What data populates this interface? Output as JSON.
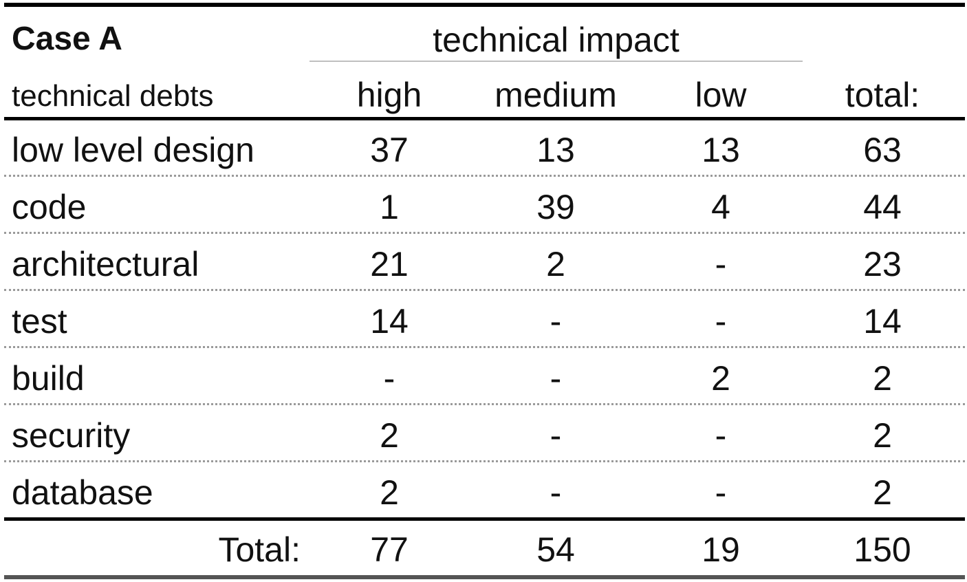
{
  "table": {
    "title": "Case A",
    "group_header": "technical impact",
    "stub_header": "technical debts",
    "columns": [
      "high",
      "medium",
      "low",
      "total:"
    ],
    "rows": [
      {
        "label": "low level design",
        "values": [
          "37",
          "13",
          "13",
          "63"
        ]
      },
      {
        "label": "code",
        "values": [
          "1",
          "39",
          "4",
          "44"
        ]
      },
      {
        "label": "architectural",
        "values": [
          "21",
          "2",
          "-",
          "23"
        ]
      },
      {
        "label": "test",
        "values": [
          "14",
          "-",
          "-",
          "14"
        ]
      },
      {
        "label": "build",
        "values": [
          "-",
          "-",
          "2",
          "2"
        ]
      },
      {
        "label": "security",
        "values": [
          "2",
          "-",
          "-",
          "2"
        ]
      },
      {
        "label": "database",
        "values": [
          "2",
          "-",
          "-",
          "2"
        ]
      }
    ],
    "total_row": {
      "label": "Total:",
      "values": [
        "77",
        "54",
        "19",
        "150"
      ]
    }
  }
}
